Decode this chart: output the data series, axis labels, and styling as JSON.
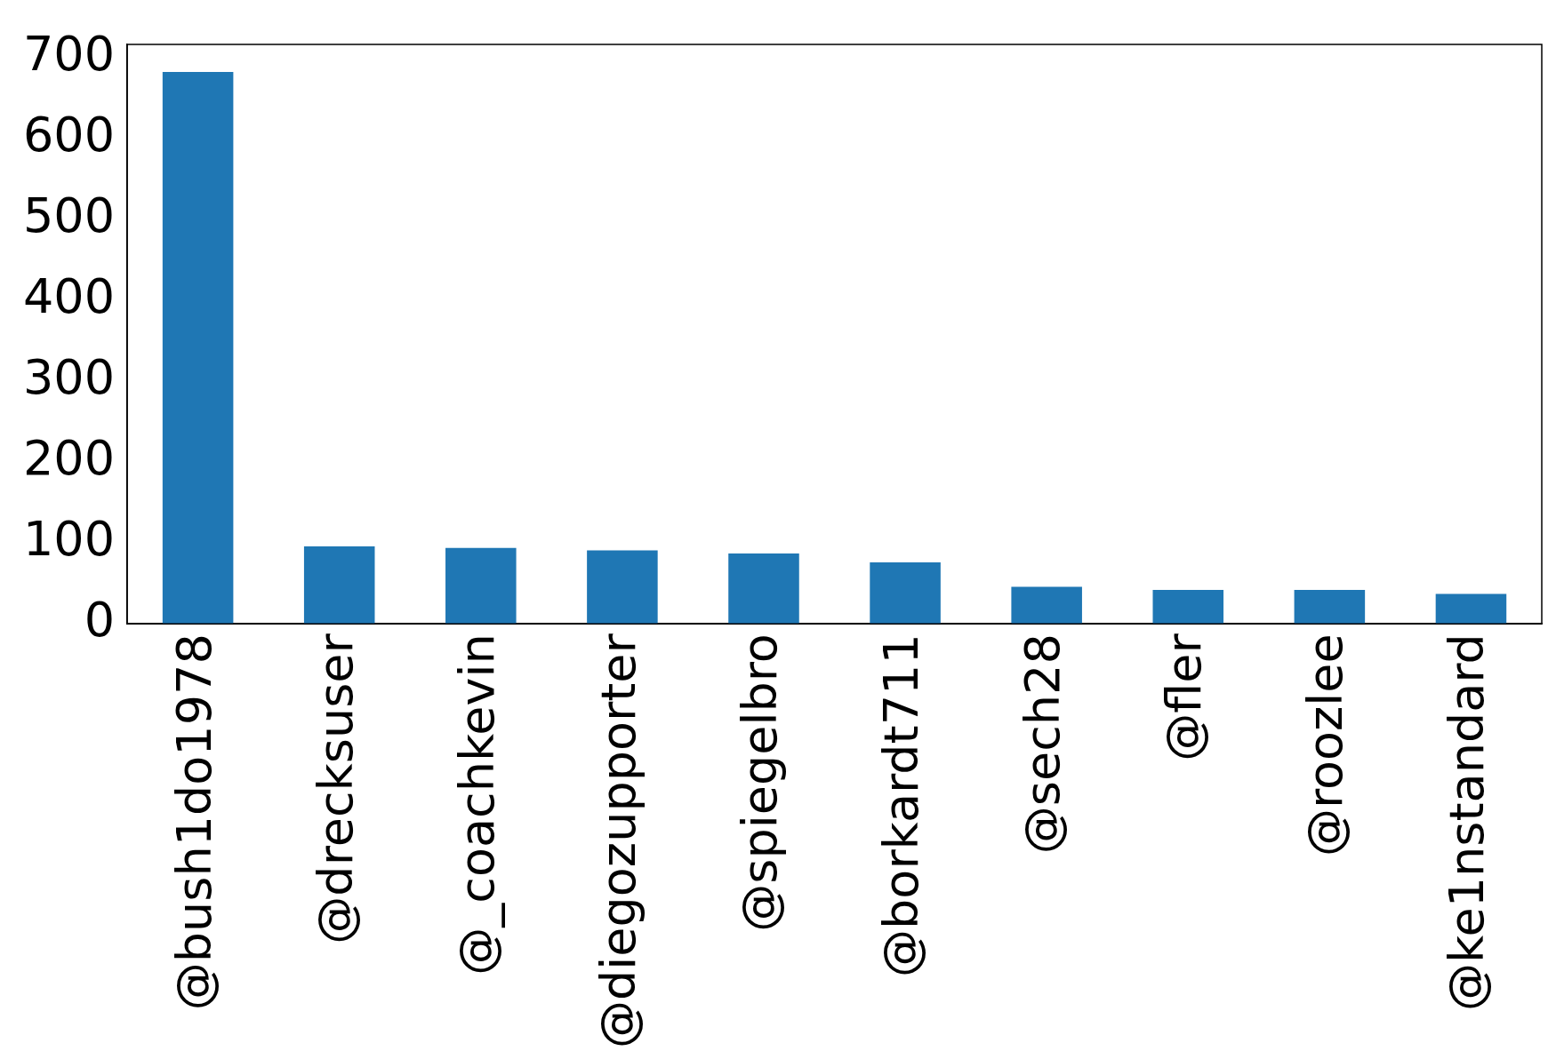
{
  "chart_data": {
    "type": "bar",
    "categories": [
      "@bush1do1978",
      "@drecksuser",
      "@_coachkevin",
      "@diegozupporter",
      "@spiegelbro",
      "@borkardt711",
      "@sech28",
      "@fler",
      "@roozlee",
      "@ke1nstandard"
    ],
    "values": [
      683,
      96,
      94,
      91,
      87,
      76,
      46,
      42,
      42,
      37
    ],
    "color": "#1f77b4",
    "ylim": [
      0,
      717
    ],
    "yticks": [
      0,
      100,
      200,
      300,
      400,
      500,
      600,
      700
    ],
    "grid": false,
    "legend": false
  }
}
